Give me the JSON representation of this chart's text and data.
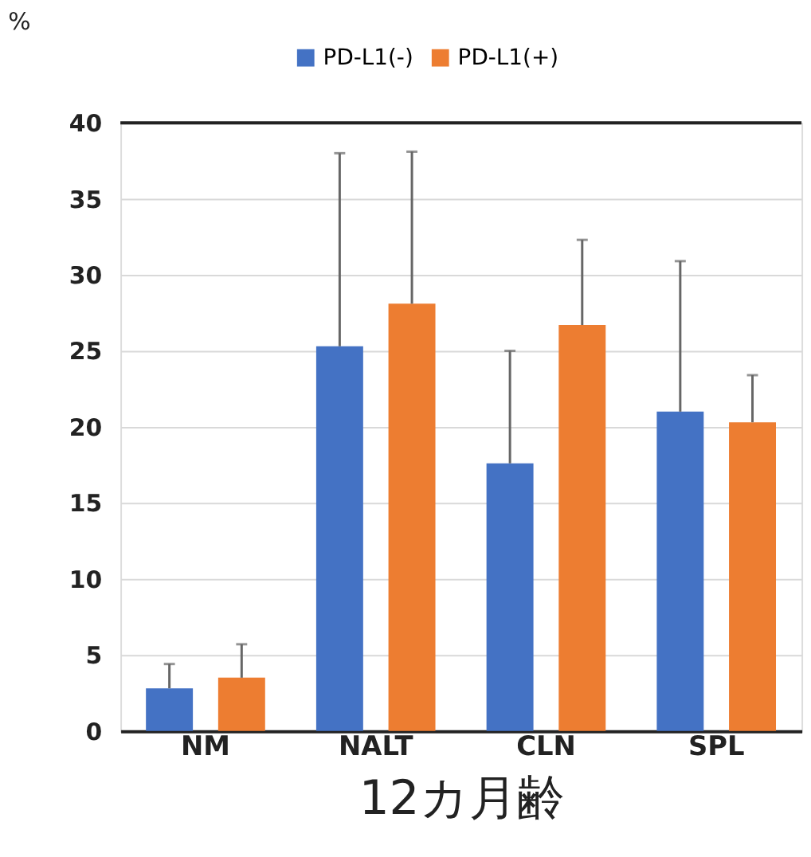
{
  "chart_data": {
    "type": "bar",
    "xlabel": "12カ月齢",
    "ylabel": "%",
    "categories": [
      "NM",
      "NALT",
      "CLN",
      "SPL"
    ],
    "series": [
      {
        "name": "PD-L1(-)",
        "color": "#4472c4",
        "values": [
          2.8,
          25.3,
          17.6,
          21.0
        ],
        "errors": [
          [
            2.8,
            4.4
          ],
          [
            25.3,
            38.0
          ],
          [
            17.6,
            25.0
          ],
          [
            21.0,
            30.9
          ]
        ]
      },
      {
        "name": "PD-L1(+)",
        "color": "#ed7d31",
        "values": [
          3.5,
          28.1,
          26.7,
          20.3
        ],
        "errors": [
          [
            3.5,
            5.7
          ],
          [
            28.1,
            38.1
          ],
          [
            26.7,
            32.3
          ],
          [
            20.3,
            23.4
          ]
        ]
      }
    ],
    "ylim": [
      0,
      40
    ],
    "yticks": [
      0,
      5,
      10,
      15,
      20,
      25,
      30,
      35,
      40
    ],
    "grid": "y",
    "legend": "top"
  }
}
